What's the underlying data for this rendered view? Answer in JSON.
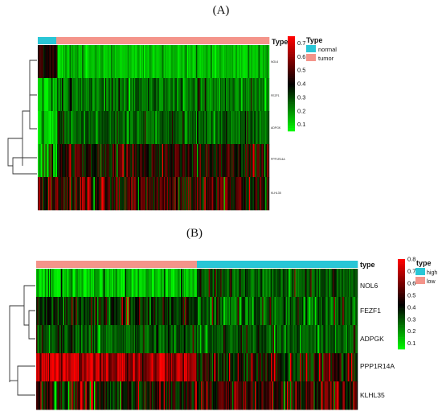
{
  "chart_data": [
    {
      "type": "heatmap",
      "panel_label": "(A)",
      "annotation_title": "Type",
      "groups": [
        {
          "name": "normal",
          "color": "#29c6d6",
          "fraction": 0.08
        },
        {
          "name": "tumor",
          "color": "#f4948a",
          "fraction": 0.92
        }
      ],
      "rows": [
        {
          "label": "NOL6",
          "base_normal": 0.45,
          "base_tumor": 0.14,
          "variation": 0.06
        },
        {
          "label": "FEZF1",
          "base_normal": 0.14,
          "base_tumor": 0.24,
          "variation": 0.08
        },
        {
          "label": "ADPGK",
          "base_normal": 0.12,
          "base_tumor": 0.26,
          "variation": 0.08
        },
        {
          "label": "PPP1R14A",
          "base_normal": 0.12,
          "base_tumor": 0.42,
          "variation": 0.14
        },
        {
          "label": "KLHL35",
          "base_normal": 0.42,
          "base_tumor": 0.46,
          "variation": 0.18
        }
      ],
      "color_scale": {
        "min": 0.05,
        "max": 0.75,
        "low": "#00ff00",
        "mid": "#000000",
        "high": "#ff0000",
        "ticks": [
          0.1,
          0.2,
          0.3,
          0.4,
          0.5,
          0.6,
          0.7
        ]
      },
      "legend_title": "Type",
      "legend_entries": [
        {
          "name": "normal",
          "color": "#29c6d6"
        },
        {
          "name": "tumor",
          "color": "#f4948a"
        }
      ]
    },
    {
      "type": "heatmap",
      "panel_label": "(B)",
      "annotation_title": "type",
      "groups": [
        {
          "name": "low",
          "color": "#f4948a",
          "fraction": 0.5
        },
        {
          "name": "high",
          "color": "#29c6d6",
          "fraction": 0.5
        }
      ],
      "rows": [
        {
          "label": "NOL6",
          "base_left": 0.14,
          "base_right": 0.3,
          "variation": 0.1
        },
        {
          "label": "FEZF1",
          "base_left": 0.36,
          "base_right": 0.28,
          "variation": 0.12
        },
        {
          "label": "ADPGK",
          "base_left": 0.3,
          "base_right": 0.3,
          "variation": 0.09
        },
        {
          "label": "PPP1R14A",
          "base_left": 0.68,
          "base_right": 0.42,
          "variation": 0.16
        },
        {
          "label": "KLHL35",
          "base_left": 0.42,
          "base_right": 0.5,
          "variation": 0.18
        }
      ],
      "color_scale": {
        "min": 0.05,
        "max": 0.8,
        "low": "#00ff00",
        "mid": "#000000",
        "high": "#ff0000",
        "ticks": [
          0.1,
          0.2,
          0.3,
          0.4,
          0.5,
          0.6,
          0.7,
          0.8
        ]
      },
      "legend_title": "type",
      "legend_entries": [
        {
          "name": "high",
          "color": "#29c6d6"
        },
        {
          "name": "low",
          "color": "#f4948a"
        }
      ]
    }
  ]
}
